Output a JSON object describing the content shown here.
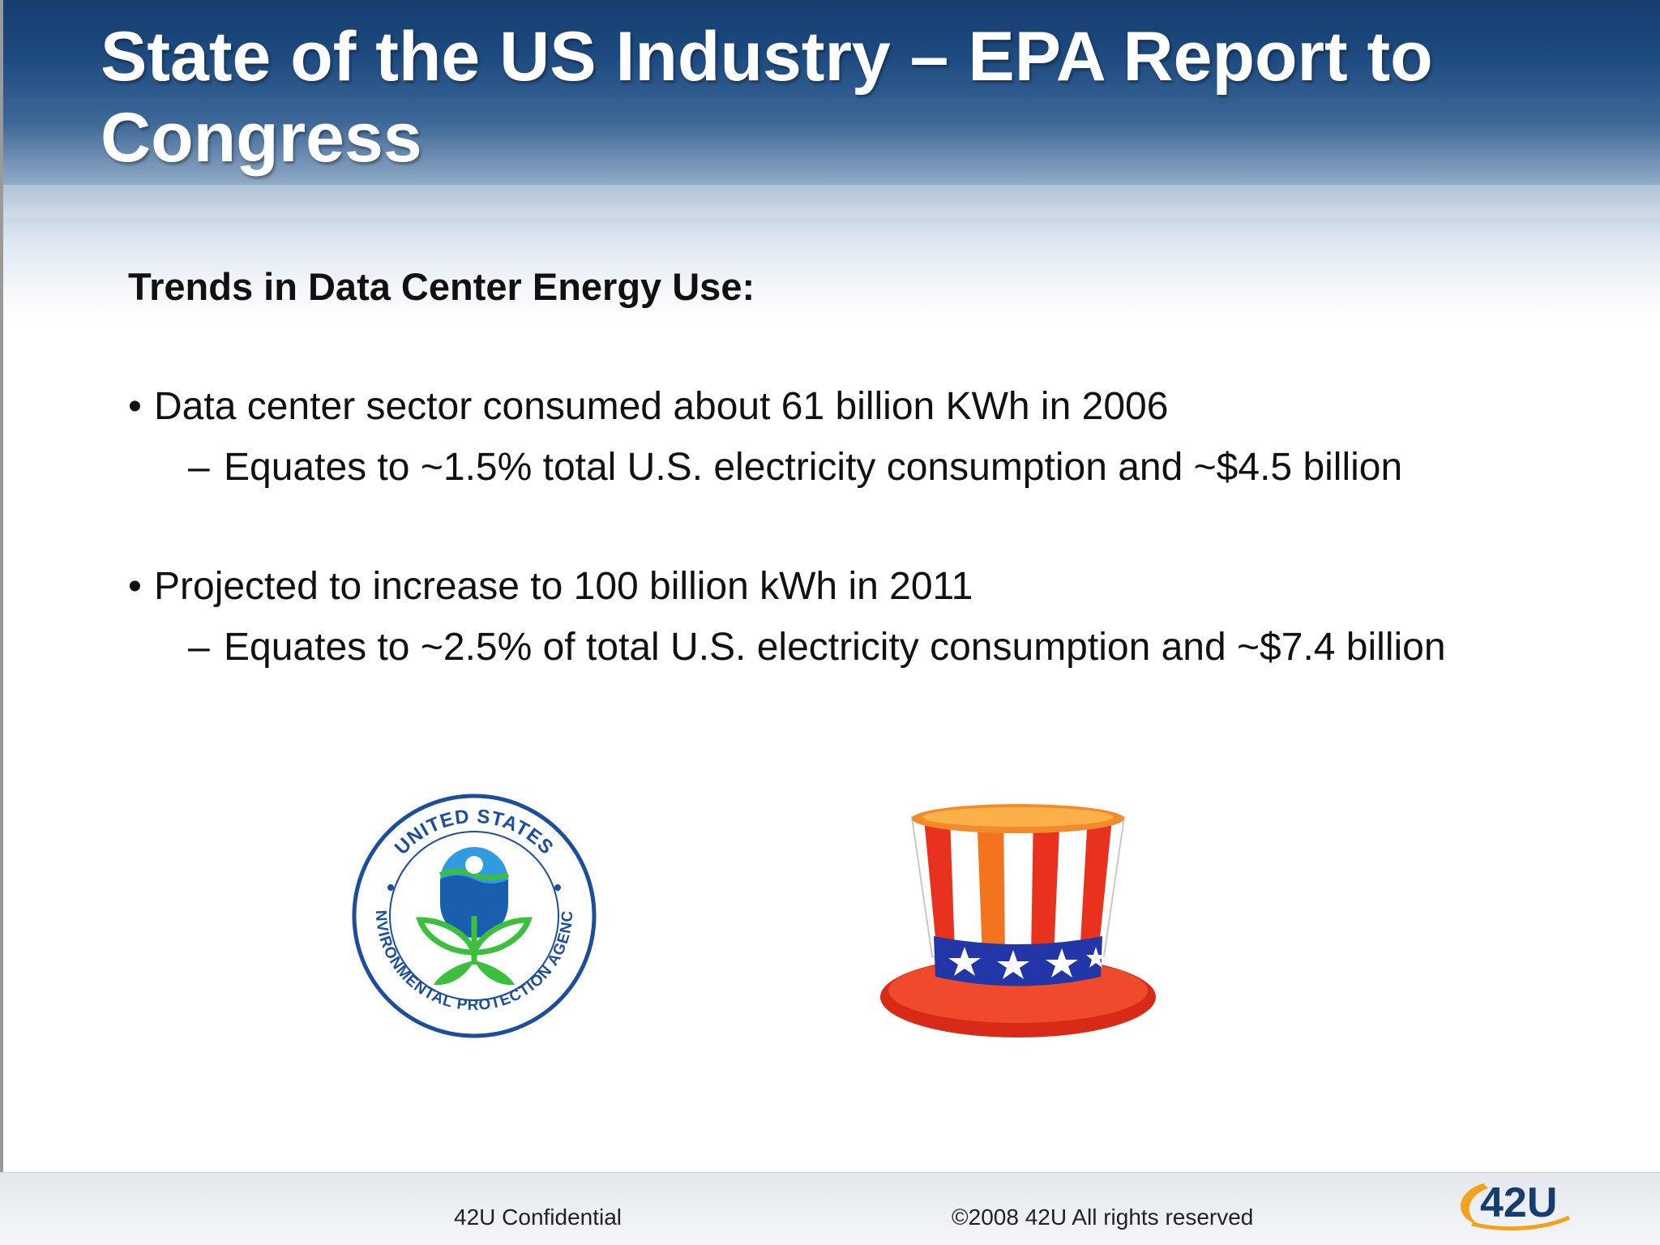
{
  "title": "State of the US Industry – EPA Report to Congress",
  "subtitle": "Trends in Data Center Energy Use:",
  "bullets": [
    {
      "text": "Data center sector consumed about 61 billion KWh in 2006",
      "sub": "Equates to ~1.5% total U.S. electricity consumption and ~$4.5 billion"
    },
    {
      "text": "Projected to increase to 100 billion kWh in 2011",
      "sub": "Equates to ~2.5% of total U.S. electricity consumption and ~$7.4 billion"
    }
  ],
  "markers": {
    "bullet": "•",
    "dash": "–"
  },
  "images": {
    "epa_seal": {
      "icon": "epa-seal-icon",
      "ring_text_top": "UNITED STATES",
      "ring_text_bottom": "ENVIRONMENTAL PROTECTION AGENCY"
    },
    "uncle_sam_hat": {
      "icon": "uncle-sam-hat-icon"
    }
  },
  "footer": {
    "left": "42U Confidential",
    "right": "©2008 42U All rights reserved",
    "brand": "42U"
  },
  "colors": {
    "header_blue": "#163d6e",
    "epa_blue": "#1b4f9c",
    "epa_green": "#3cbf3c",
    "hat_red": "#e8321e",
    "hat_blue": "#2336a8",
    "brand_orange": "#f2a21c"
  }
}
